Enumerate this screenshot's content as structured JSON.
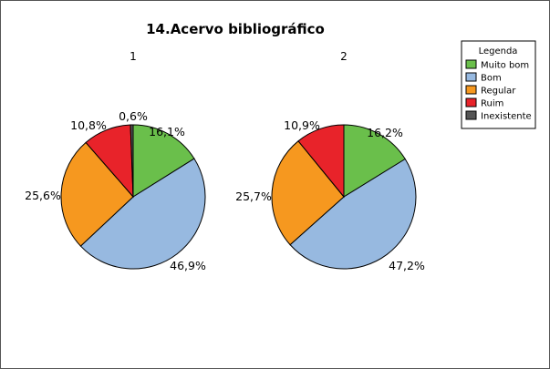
{
  "chart_data": {
    "type": "pie",
    "title": "14.Acervo bibliográfico",
    "categories": [
      "Muito bom",
      "Bom",
      "Regular",
      "Ruim",
      "Inexistente"
    ],
    "colors": [
      "#6abf4b",
      "#97b9e0",
      "#f6981f",
      "#e8232a",
      "#555555"
    ],
    "pies": [
      {
        "name": "1",
        "values": [
          16.1,
          46.9,
          25.6,
          10.8,
          0.6
        ],
        "labels": [
          "16,1%",
          "46,9%",
          "25,6%",
          "10,8%",
          "0,6%"
        ]
      },
      {
        "name": "2",
        "values": [
          16.2,
          47.2,
          25.7,
          10.9,
          0.0
        ],
        "labels": [
          "16,2%",
          "47,2%",
          "25,7%",
          "10,9%",
          ""
        ]
      }
    ],
    "legend": {
      "title": "Legenda",
      "position": "right"
    }
  }
}
